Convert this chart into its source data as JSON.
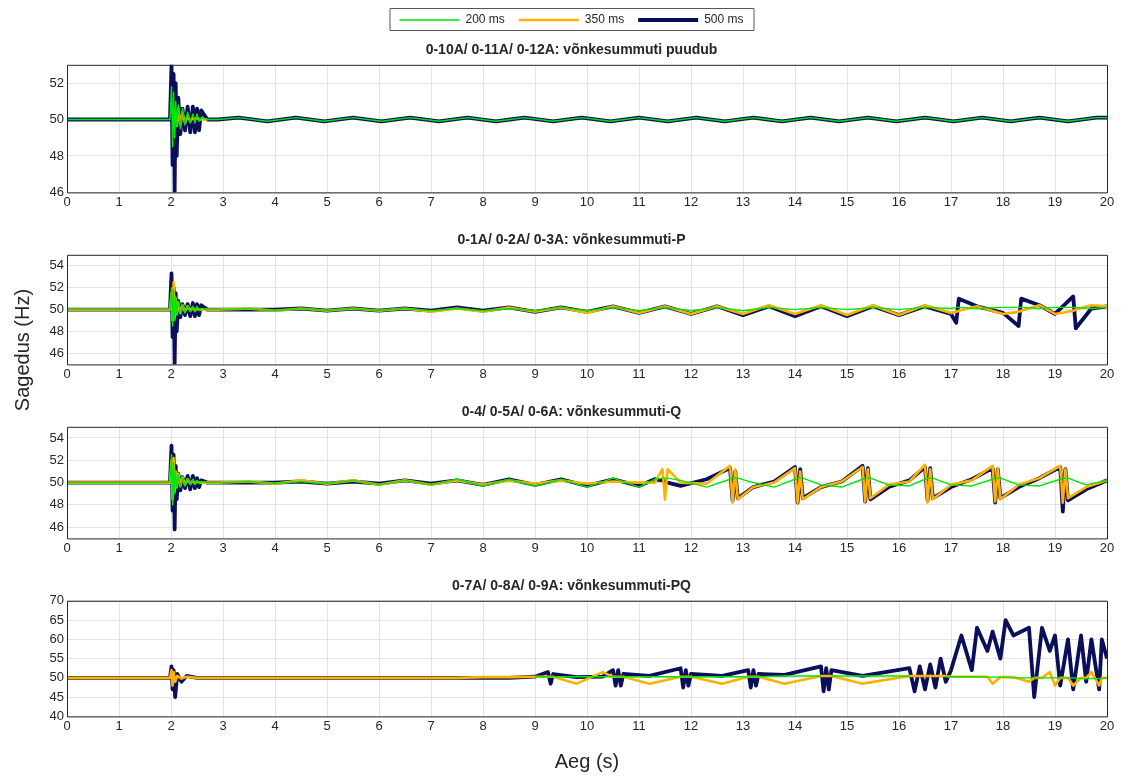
{
  "chart_data": [
    {
      "type": "line",
      "title": "0-10A/ 0-11A/ 0-12A: võnkesummuti puudub",
      "ylabel": "Sagedus (Hz)",
      "legend": "top",
      "grid": true,
      "xlim": [
        0,
        20
      ],
      "xticks": [
        0,
        1,
        2,
        3,
        4,
        5,
        6,
        7,
        8,
        9,
        10,
        11,
        12,
        13,
        14,
        15,
        16,
        17,
        18,
        19,
        20
      ],
      "ylim": [
        46,
        53
      ],
      "yticks": [
        46,
        48,
        50,
        52
      ],
      "x": [
        0,
        1.98,
        2.01,
        2.03,
        2.05,
        2.07,
        2.09,
        2.11,
        2.14,
        2.18,
        2.22,
        2.27,
        2.32,
        2.37,
        2.42,
        2.46,
        2.5,
        2.54,
        2.58,
        2.7,
        2.9,
        3.3,
        3.85,
        4.4,
        4.95,
        5.5,
        6.05,
        6.6,
        7.15,
        7.7,
        8.25,
        8.8,
        9.35,
        9.9,
        10.45,
        11,
        11.55,
        12.1,
        12.65,
        13.2,
        13.75,
        14.3,
        14.85,
        15.4,
        15.95,
        16.5,
        17.05,
        17.6,
        18.15,
        18.7,
        19.25,
        19.8,
        20
      ],
      "series": [
        {
          "name": "200 ms",
          "color": "#00e600",
          "values": [
            50,
            50,
            51.8,
            48.5,
            51.5,
            49,
            51,
            49.6,
            50.8,
            49.5,
            50.6,
            49.7,
            50.4,
            49.8,
            50.3,
            49.8,
            50.3,
            49.9,
            50.1,
            50,
            50,
            50.1,
            49.9,
            50.1,
            49.9,
            50.1,
            49.9,
            50.1,
            49.9,
            50.1,
            49.9,
            50.1,
            49.9,
            50.1,
            49.9,
            50.1,
            49.9,
            50.1,
            49.9,
            50.1,
            49.9,
            50.1,
            49.9,
            50.1,
            49.9,
            50.1,
            49.9,
            50.1,
            49.9,
            50.1,
            49.9,
            50.1,
            50.1
          ]
        },
        {
          "name": "350 ms",
          "color": "#ffb000",
          "values": [
            null,
            null,
            null,
            null,
            null,
            null,
            null,
            49.6,
            50.6,
            49.7,
            50.4,
            49.8,
            50.2,
            49.9,
            50.1,
            50,
            50.1,
            50,
            50,
            50,
            null,
            null,
            null,
            null,
            null,
            null,
            null,
            null,
            null,
            null,
            null,
            null,
            null,
            null,
            null,
            null,
            null,
            null,
            null,
            null,
            null,
            null,
            null,
            null,
            null,
            null,
            null,
            null,
            null,
            null,
            null,
            null,
            null
          ]
        },
        {
          "name": "500 ms",
          "color": "#0a0f5c",
          "values": [
            50,
            50,
            53,
            47.5,
            52.5,
            46,
            52,
            48,
            51.2,
            49.2,
            50.6,
            49.4,
            50.7,
            49.3,
            50.7,
            49.3,
            50.6,
            49.4,
            50.5,
            50,
            50,
            50.1,
            49.9,
            50.1,
            49.9,
            50.1,
            49.9,
            50.1,
            49.9,
            50.1,
            49.9,
            50.1,
            49.9,
            50.1,
            49.9,
            50.1,
            49.9,
            50.1,
            49.9,
            50.1,
            49.9,
            50.1,
            49.9,
            50.1,
            49.9,
            50.1,
            49.9,
            50.1,
            49.9,
            50.1,
            49.9,
            50.1,
            50.1
          ]
        }
      ]
    },
    {
      "type": "line",
      "title": "0-1A/ 0-2A/ 0-3A: võnkesummuti-P",
      "grid": true,
      "xlim": [
        0,
        20
      ],
      "xticks": [
        0,
        1,
        2,
        3,
        4,
        5,
        6,
        7,
        8,
        9,
        10,
        11,
        12,
        13,
        14,
        15,
        16,
        17,
        18,
        19,
        20
      ],
      "ylim": [
        45,
        55
      ],
      "yticks": [
        46,
        48,
        50,
        52,
        54
      ],
      "x": [
        0,
        1.98,
        2.01,
        2.03,
        2.05,
        2.07,
        2.09,
        2.11,
        2.14,
        2.18,
        2.22,
        2.27,
        2.32,
        2.37,
        2.42,
        2.46,
        2.5,
        2.54,
        2.58,
        2.7,
        2.9,
        3.5,
        4,
        4.5,
        5,
        5.5,
        6,
        6.5,
        7,
        7.5,
        8,
        8.5,
        9,
        9.5,
        10,
        10.5,
        11,
        11.5,
        12,
        12.5,
        13,
        13.5,
        14,
        14.5,
        15,
        15.5,
        16,
        16.5,
        17,
        17.1,
        17.15,
        17.5,
        18,
        18.3,
        18.35,
        18.7,
        19,
        19.35,
        19.4,
        19.7,
        20
      ],
      "series": [
        {
          "color": "#00e600",
          "values": [
            50,
            50,
            52,
            48.5,
            51.8,
            49,
            51.2,
            49.5,
            50.8,
            49.6,
            50.5,
            49.7,
            50.4,
            49.8,
            50.3,
            49.8,
            50.3,
            49.9,
            50.1,
            50,
            50,
            50.1,
            49.9,
            50.1,
            49.9,
            50.1,
            49.9,
            50.1,
            49.9,
            50.1,
            49.9,
            50.1,
            49.9,
            50.2,
            49.9,
            50.2,
            49.9,
            50.2,
            49.9,
            50.2,
            49.9,
            50.2,
            50,
            50.2,
            50,
            50.2,
            50,
            50.2,
            50.1,
            50.2,
            50.2,
            50.1,
            50.2,
            50.2,
            50.2,
            50.1,
            50.2,
            50.2,
            50.2,
            50.1,
            50.2
          ]
        },
        {
          "color": "#ffb000",
          "values": [
            50,
            50,
            51.5,
            49,
            52.5,
            49.2,
            51,
            49.6,
            50.6,
            49.7,
            50.4,
            49.8,
            50.3,
            49.9,
            50.2,
            49.9,
            50.1,
            50,
            50,
            50,
            50,
            50.1,
            49.9,
            50.1,
            49.9,
            50.1,
            49.9,
            50.1,
            49.8,
            50.1,
            49.8,
            50.2,
            49.8,
            50.2,
            49.7,
            50.3,
            49.7,
            50.3,
            49.6,
            50.3,
            49.6,
            50.4,
            49.6,
            50.4,
            49.5,
            50.4,
            49.5,
            50.4,
            49.7,
            49.8,
            49.9,
            50.3,
            49.6,
            49.8,
            49.9,
            50.4,
            49.6,
            49.9,
            50,
            50.4,
            50.3
          ]
        },
        {
          "color": "#0a0f5c",
          "values": [
            50,
            50,
            53.3,
            47.5,
            52,
            45,
            51.5,
            48,
            50.8,
            49.3,
            50.5,
            49.5,
            50.5,
            49.4,
            50.6,
            49.4,
            50.5,
            49.5,
            50.4,
            50,
            50,
            50,
            50,
            50.1,
            49.9,
            50.1,
            49.9,
            50.1,
            49.9,
            50.2,
            49.9,
            50.2,
            49.8,
            50.2,
            49.8,
            50.3,
            49.7,
            50.3,
            49.6,
            50.3,
            49.5,
            50.3,
            49.4,
            50.3,
            49.4,
            50.3,
            49.5,
            50.3,
            49.6,
            48.8,
            51,
            50.3,
            49.7,
            48.5,
            51,
            50.4,
            49.6,
            51.2,
            48.3,
            50.1,
            50.3
          ]
        }
      ]
    },
    {
      "type": "line",
      "title": "0-4/ 0-5A/ 0-6A: võnkesummuti-Q",
      "grid": true,
      "xlim": [
        0,
        20
      ],
      "xticks": [
        0,
        1,
        2,
        3,
        4,
        5,
        6,
        7,
        8,
        9,
        10,
        11,
        12,
        13,
        14,
        15,
        16,
        17,
        18,
        19,
        20
      ],
      "ylim": [
        45,
        55
      ],
      "yticks": [
        46,
        48,
        50,
        52,
        54
      ],
      "x": [
        0,
        1.98,
        2.01,
        2.03,
        2.05,
        2.07,
        2.09,
        2.11,
        2.14,
        2.18,
        2.22,
        2.27,
        2.32,
        2.37,
        2.42,
        2.46,
        2.5,
        2.54,
        2.58,
        2.7,
        2.9,
        3.5,
        4,
        4.5,
        5,
        5.5,
        6,
        6.5,
        7,
        7.5,
        8,
        8.5,
        9,
        9.5,
        10,
        10.5,
        11,
        11.3,
        11.45,
        11.5,
        11.55,
        11.8,
        12.3,
        12.75,
        12.8,
        12.85,
        12.9,
        13.2,
        13.6,
        14,
        14.05,
        14.1,
        14.15,
        14.5,
        14.9,
        15.3,
        15.35,
        15.4,
        15.45,
        15.8,
        16.2,
        16.5,
        16.55,
        16.6,
        16.65,
        17,
        17.4,
        17.8,
        17.85,
        17.9,
        17.95,
        18.3,
        18.7,
        19.1,
        19.15,
        19.2,
        19.25,
        19.6,
        20
      ],
      "series": [
        {
          "color": "#00e600",
          "values": [
            50,
            50,
            52.5,
            48,
            51.8,
            49,
            51,
            49.5,
            50.7,
            49.6,
            50.5,
            49.7,
            50.4,
            49.8,
            50.3,
            49.8,
            50.2,
            49.9,
            50.1,
            50,
            50,
            50.1,
            49.9,
            50.1,
            49.9,
            50.2,
            49.8,
            50.2,
            49.8,
            50.3,
            49.7,
            50.3,
            49.7,
            50.3,
            49.6,
            50.4,
            49.6,
            50.3,
            50.4,
            50.4,
            50.4,
            50.2,
            49.6,
            50.3,
            50.4,
            50.4,
            50.4,
            50,
            49.6,
            50.3,
            50.4,
            50.4,
            50.4,
            49.8,
            49.6,
            50.3,
            50.4,
            50.4,
            50.4,
            49.8,
            49.7,
            50.3,
            50.4,
            50.4,
            50.4,
            49.8,
            49.7,
            50.3,
            50.4,
            50.4,
            50.4,
            49.8,
            49.7,
            50.3,
            50.4,
            50.4,
            50.4,
            49.8,
            50.2
          ]
        },
        {
          "color": "#ffb000",
          "values": [
            50,
            50,
            52,
            48.5,
            52.2,
            49.2,
            51,
            49.6,
            50.8,
            49.7,
            50.5,
            49.8,
            50.3,
            49.9,
            50.2,
            49.9,
            50.1,
            50,
            50,
            50,
            50,
            50.1,
            49.9,
            50.2,
            49.9,
            50.2,
            49.8,
            50.2,
            49.8,
            50.2,
            49.8,
            50.2,
            49.9,
            50.2,
            49.9,
            50.1,
            50,
            50,
            51.2,
            48.5,
            51.2,
            50,
            49.9,
            51.5,
            48.2,
            51.2,
            48.5,
            49.6,
            50,
            51.3,
            48.2,
            51,
            48.5,
            49.6,
            50.1,
            51.4,
            48.3,
            51.2,
            48.6,
            49.8,
            50.1,
            51.6,
            48.2,
            51.2,
            48.5,
            49.8,
            50.2,
            51.5,
            48.3,
            51.3,
            48.5,
            49.8,
            50.4,
            51.5,
            48.2,
            51.2,
            48.6,
            49.6,
            50.2
          ]
        },
        {
          "color": "#0a0f5c",
          "values": [
            50,
            50,
            53.3,
            47.5,
            52.5,
            45.8,
            51.5,
            48.5,
            50.8,
            49.3,
            50.5,
            49.5,
            50.6,
            49.4,
            50.6,
            49.5,
            50.4,
            49.6,
            50.2,
            50,
            50,
            50,
            50,
            50.1,
            49.9,
            50.1,
            49.9,
            50.2,
            49.9,
            50.2,
            49.8,
            50.3,
            49.8,
            50.3,
            49.7,
            50.3,
            49.7,
            50.3,
            50.2,
            50.1,
            50,
            49.7,
            50.3,
            51.3,
            48.4,
            51,
            48.6,
            49.6,
            50.1,
            51.4,
            48.2,
            51.2,
            48.6,
            49.6,
            50.1,
            51.5,
            48.3,
            51.3,
            48.5,
            49.6,
            50.2,
            51.4,
            48.4,
            51.3,
            48.6,
            49.6,
            50.3,
            51.3,
            48.2,
            51.2,
            48.6,
            49.6,
            50.4,
            51.4,
            47.4,
            51.2,
            48.4,
            49.4,
            50.2
          ]
        }
      ]
    },
    {
      "type": "line",
      "title": "0-7A/ 0-8A/ 0-9A: võnkesummuti-PQ",
      "xlabel": "Aeg (s)",
      "grid": true,
      "xlim": [
        0,
        20
      ],
      "xticks": [
        0,
        1,
        2,
        3,
        4,
        5,
        6,
        7,
        8,
        9,
        10,
        11,
        12,
        13,
        14,
        15,
        16,
        17,
        18,
        19,
        20
      ],
      "ylim": [
        40,
        70
      ],
      "yticks": [
        40,
        45,
        50,
        55,
        60,
        65,
        70
      ],
      "x": [
        0,
        1.98,
        2.01,
        2.03,
        2.05,
        2.08,
        2.12,
        2.2,
        2.3,
        2.5,
        2.8,
        3.5,
        4,
        4.5,
        5,
        5.5,
        6,
        6.5,
        7,
        7.5,
        8,
        8.5,
        9,
        9.25,
        9.3,
        9.35,
        9.8,
        10.3,
        10.5,
        10.55,
        10.6,
        10.65,
        10.7,
        11.2,
        11.8,
        11.85,
        11.9,
        11.95,
        12,
        12.6,
        13.1,
        13.15,
        13.2,
        13.25,
        13.3,
        13.8,
        14.5,
        14.55,
        14.6,
        14.65,
        14.7,
        15.3,
        16.2,
        16.3,
        16.4,
        16.5,
        16.6,
        16.7,
        16.8,
        16.9,
        17,
        17.2,
        17.4,
        17.5,
        17.7,
        17.8,
        17.95,
        18.05,
        18.2,
        18.5,
        18.6,
        18.75,
        18.9,
        19,
        19.1,
        19.25,
        19.35,
        19.5,
        19.6,
        19.7,
        19.85,
        19.9,
        20
      ],
      "series": [
        {
          "color": "#00e600",
          "values": [
            null,
            null,
            null,
            null,
            null,
            null,
            null,
            null,
            null,
            null,
            null,
            null,
            null,
            null,
            null,
            null,
            null,
            null,
            null,
            null,
            null,
            null,
            50.3,
            50.3,
            50.3,
            50.3,
            50.3,
            50.3,
            50.3,
            50.3,
            50.3,
            50.3,
            50.3,
            50.3,
            50.3,
            50.3,
            50.3,
            50.3,
            50.3,
            50.3,
            50.3,
            50.3,
            50.3,
            50.3,
            50.3,
            50.5,
            50.5,
            null,
            null,
            null,
            50.5,
            50.5,
            50.5,
            null,
            null,
            null,
            null,
            null,
            null,
            50.5,
            50.3,
            50.3,
            50.3,
            50.3,
            50.2,
            50.2,
            50.2,
            50.2,
            50,
            50,
            50,
            50,
            50,
            50,
            50,
            50,
            50,
            49.8,
            49.8,
            49.8,
            49.8,
            49.8,
            50
          ]
        },
        {
          "color": "#ffb000",
          "values": [
            50,
            50,
            52,
            48,
            51.5,
            49,
            50.5,
            49.8,
            50.3,
            50,
            50,
            50,
            50,
            50,
            50,
            50,
            50,
            50,
            50,
            50,
            50.2,
            50.2,
            50.3,
            50.3,
            50.3,
            50.3,
            48.5,
            51.5,
            50.3,
            50.3,
            50.3,
            50.3,
            50.3,
            48.5,
            50.3,
            50.3,
            50.3,
            50.3,
            50.3,
            48.5,
            50.3,
            50.3,
            50.3,
            50.3,
            50.3,
            48.5,
            50.5,
            50.5,
            50.5,
            50.5,
            50.5,
            48.5,
            50.5,
            50.5,
            50.5,
            50.5,
            50.5,
            50.5,
            50.5,
            50.5,
            50.3,
            50.3,
            50.3,
            50.3,
            50.3,
            48.5,
            50.2,
            50.2,
            50.2,
            49,
            50,
            50,
            51.5,
            48,
            50,
            50,
            48,
            50,
            50,
            51.5,
            48,
            50,
            50
          ]
        },
        {
          "color": "#0a0f5c",
          "values": [
            50,
            50,
            53,
            47,
            52,
            45,
            51,
            49,
            50.5,
            50,
            50,
            50,
            50,
            50,
            50,
            50,
            50,
            50,
            50,
            50,
            50,
            50,
            50.3,
            51.5,
            48.5,
            51,
            50.2,
            50.3,
            52,
            48,
            52,
            48,
            51,
            50.5,
            52.5,
            47.5,
            52,
            48,
            51,
            50.5,
            52,
            47.5,
            52,
            48,
            51,
            50.8,
            53,
            46.5,
            52.5,
            47,
            52,
            50.5,
            52.5,
            46.5,
            53,
            47,
            53.5,
            47.5,
            55,
            49,
            52,
            61,
            52,
            63,
            57,
            62,
            55,
            65,
            61,
            63,
            45,
            63,
            57,
            61,
            48,
            60,
            47,
            61,
            49,
            60,
            47,
            60,
            55
          ]
        }
      ]
    }
  ]
}
